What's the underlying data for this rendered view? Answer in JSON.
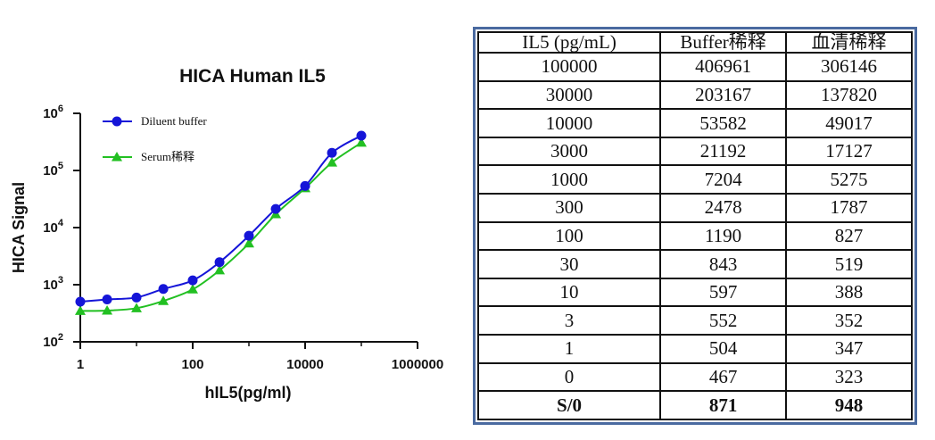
{
  "chart_data": {
    "type": "line",
    "title": "HICA Human IL5",
    "xlabel": "hIL5(pg/ml)",
    "ylabel": "HICA Signal",
    "xscale": "log",
    "yscale": "log",
    "xlim": [
      1,
      1000000
    ],
    "ylim": [
      100,
      1000000
    ],
    "x_ticks": [
      {
        "value": 1,
        "label": "1"
      },
      {
        "value": 100,
        "label": "100"
      },
      {
        "value": 10000,
        "label": "10000"
      },
      {
        "value": 1000000,
        "label": "1000000"
      }
    ],
    "y_ticks": [
      {
        "value": 100,
        "base": "10",
        "exp": "2"
      },
      {
        "value": 1000,
        "base": "10",
        "exp": "3"
      },
      {
        "value": 10000,
        "base": "10",
        "exp": "4"
      },
      {
        "value": 100000,
        "base": "10",
        "exp": "5"
      },
      {
        "value": 1000000,
        "base": "10",
        "exp": "6"
      }
    ],
    "x": [
      1,
      3,
      10,
      30,
      100,
      300,
      1000,
      3000,
      10000,
      30000,
      100000
    ],
    "series": [
      {
        "name": "Diluent buffer",
        "color": "#1515d8",
        "marker": "circle",
        "values": [
          504,
          552,
          597,
          843,
          1190,
          2478,
          7204,
          21192,
          53582,
          203167,
          406961
        ]
      },
      {
        "name": "Serum稀释",
        "color": "#22c022",
        "marker": "triangle",
        "values": [
          347,
          352,
          388,
          519,
          827,
          1787,
          5275,
          17127,
          49017,
          137820,
          306146
        ]
      }
    ],
    "legend_position": "top-left",
    "grid": false
  },
  "table": {
    "headers": [
      "IL5 (pg/mL)",
      "Buffer稀释",
      "血清稀释"
    ],
    "rows": [
      [
        "100000",
        "406961",
        "306146"
      ],
      [
        "30000",
        "203167",
        "137820"
      ],
      [
        "10000",
        "53582",
        "49017"
      ],
      [
        "3000",
        "21192",
        "17127"
      ],
      [
        "1000",
        "7204",
        "5275"
      ],
      [
        "300",
        "2478",
        "1787"
      ],
      [
        "100",
        "1190",
        "827"
      ],
      [
        "30",
        "843",
        "519"
      ],
      [
        "10",
        "597",
        "388"
      ],
      [
        "3",
        "552",
        "352"
      ],
      [
        "1",
        "504",
        "347"
      ],
      [
        "0",
        "467",
        "323"
      ]
    ],
    "summary": [
      "S/0",
      "871",
      "948"
    ]
  }
}
